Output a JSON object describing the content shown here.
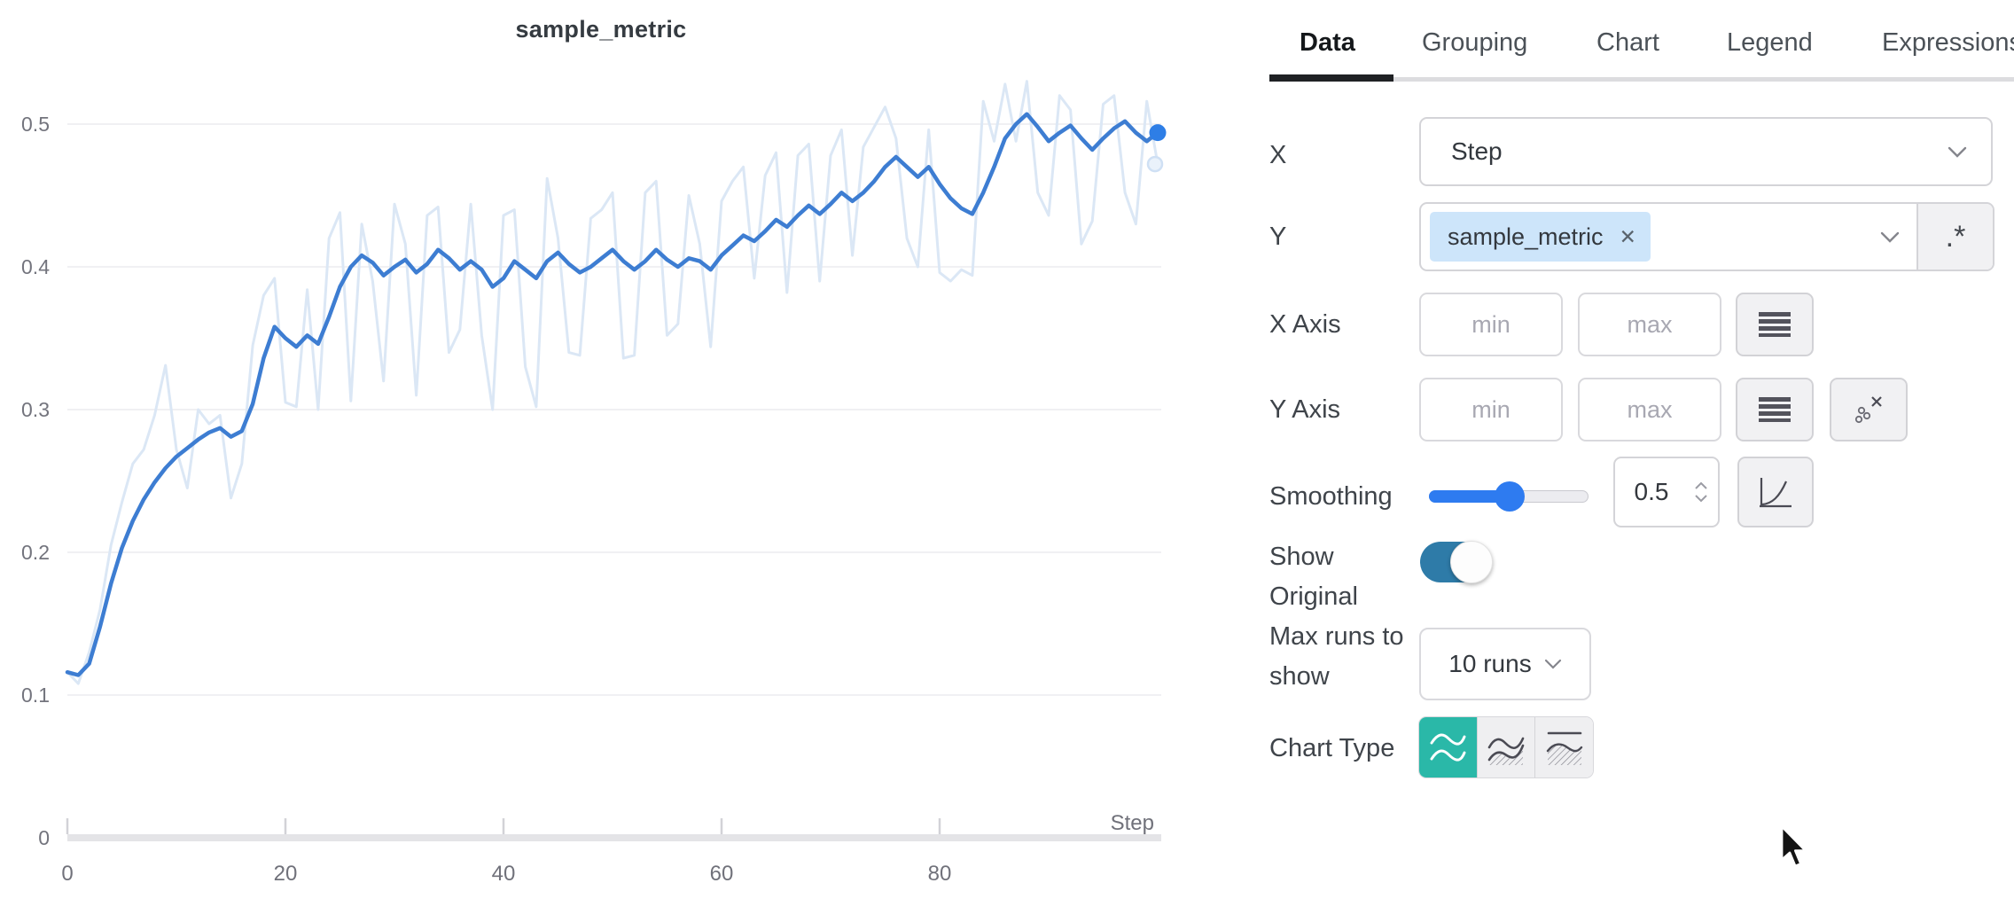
{
  "chart": {
    "title": "sample_metric",
    "x_axis_label": "Step",
    "y_tick_labels": [
      "0",
      "0.1",
      "0.2",
      "0.3",
      "0.4",
      "0.5"
    ],
    "x_tick_labels": [
      "0",
      "20",
      "40",
      "60",
      "80"
    ]
  },
  "chart_data": {
    "type": "line",
    "title": "sample_metric",
    "xlabel": "Step",
    "ylabel": "",
    "xlim": [
      0,
      100
    ],
    "ylim": [
      0,
      0.52
    ],
    "x_ticks": [
      0,
      20,
      40,
      60,
      80
    ],
    "y_ticks": [
      0,
      0.1,
      0.2,
      0.3,
      0.4,
      0.5
    ],
    "grid": true,
    "legend": "none",
    "x": [
      0,
      1,
      2,
      3,
      4,
      5,
      6,
      7,
      8,
      9,
      10,
      11,
      12,
      13,
      14,
      15,
      16,
      17,
      18,
      19,
      20,
      21,
      22,
      23,
      24,
      25,
      26,
      27,
      28,
      29,
      30,
      31,
      32,
      33,
      34,
      35,
      36,
      37,
      38,
      39,
      40,
      41,
      42,
      43,
      44,
      45,
      46,
      47,
      48,
      49,
      50,
      51,
      52,
      53,
      54,
      55,
      56,
      57,
      58,
      59,
      60,
      61,
      62,
      63,
      64,
      65,
      66,
      67,
      68,
      69,
      70,
      71,
      72,
      73,
      74,
      75,
      76,
      77,
      78,
      79,
      80,
      81,
      82,
      83,
      84,
      85,
      86,
      87,
      88,
      89,
      90,
      91,
      92,
      93,
      94,
      95,
      96,
      97,
      98,
      99,
      100
    ],
    "series": [
      {
        "name": "sample_metric (smoothed, 0.5)",
        "color": "#3d7dd2",
        "values": [
          0.116,
          0.114,
          0.122,
          0.148,
          0.178,
          0.203,
          0.222,
          0.237,
          0.249,
          0.259,
          0.267,
          0.273,
          0.279,
          0.284,
          0.287,
          0.281,
          0.285,
          0.304,
          0.336,
          0.358,
          0.35,
          0.344,
          0.352,
          0.346,
          0.365,
          0.386,
          0.4,
          0.408,
          0.403,
          0.394,
          0.4,
          0.405,
          0.396,
          0.402,
          0.412,
          0.406,
          0.398,
          0.404,
          0.398,
          0.386,
          0.392,
          0.404,
          0.398,
          0.392,
          0.404,
          0.41,
          0.402,
          0.396,
          0.4,
          0.406,
          0.412,
          0.404,
          0.398,
          0.404,
          0.412,
          0.405,
          0.4,
          0.406,
          0.404,
          0.398,
          0.408,
          0.415,
          0.422,
          0.418,
          0.425,
          0.433,
          0.428,
          0.436,
          0.443,
          0.437,
          0.444,
          0.452,
          0.446,
          0.452,
          0.46,
          0.47,
          0.477,
          0.47,
          0.463,
          0.47,
          0.458,
          0.448,
          0.441,
          0.437,
          0.452,
          0.47,
          0.49,
          0.5,
          0.507,
          0.498,
          0.488,
          0.494,
          0.499,
          0.49,
          0.482,
          0.49,
          0.497,
          0.502,
          0.494,
          0.488,
          0.494
        ]
      },
      {
        "name": "sample_metric (original)",
        "color": "#dbe7f5",
        "values": [
          0.116,
          0.108,
          0.13,
          0.16,
          0.205,
          0.235,
          0.262,
          0.272,
          0.296,
          0.331,
          0.272,
          0.245,
          0.3,
          0.29,
          0.296,
          0.238,
          0.262,
          0.345,
          0.38,
          0.392,
          0.305,
          0.302,
          0.384,
          0.3,
          0.42,
          0.438,
          0.306,
          0.43,
          0.39,
          0.32,
          0.444,
          0.416,
          0.31,
          0.436,
          0.442,
          0.34,
          0.356,
          0.444,
          0.352,
          0.3,
          0.436,
          0.44,
          0.33,
          0.302,
          0.462,
          0.42,
          0.34,
          0.338,
          0.434,
          0.44,
          0.452,
          0.336,
          0.338,
          0.452,
          0.46,
          0.352,
          0.36,
          0.45,
          0.416,
          0.344,
          0.446,
          0.46,
          0.47,
          0.392,
          0.464,
          0.48,
          0.382,
          0.478,
          0.486,
          0.39,
          0.478,
          0.496,
          0.408,
          0.484,
          0.498,
          0.512,
          0.49,
          0.42,
          0.4,
          0.496,
          0.396,
          0.39,
          0.398,
          0.394,
          0.516,
          0.488,
          0.528,
          0.488,
          0.53,
          0.452,
          0.436,
          0.52,
          0.51,
          0.416,
          0.432,
          0.514,
          0.52,
          0.452,
          0.43,
          0.516,
          0.472
        ]
      }
    ],
    "end_markers": {
      "smoothed": {
        "x": 100,
        "y": 0.494
      },
      "original": {
        "x": 100,
        "y": 0.472
      }
    }
  },
  "panel": {
    "tabs": [
      {
        "label": "Data",
        "active": true
      },
      {
        "label": "Grouping",
        "active": false
      },
      {
        "label": "Chart",
        "active": false
      },
      {
        "label": "Legend",
        "active": false
      },
      {
        "label": "Expressions",
        "active": false
      }
    ],
    "x_row": {
      "label": "X",
      "value": "Step"
    },
    "y_row": {
      "label": "Y",
      "tag": "sample_metric",
      "remove_glyph": "✕",
      "regex_button": ".*"
    },
    "x_axis_row": {
      "label": "X Axis",
      "min_placeholder": "min",
      "max_placeholder": "max"
    },
    "y_axis_row": {
      "label": "Y Axis",
      "min_placeholder": "min",
      "max_placeholder": "max"
    },
    "smoothing_row": {
      "label": "Smoothing",
      "value": "0.5"
    },
    "show_original_row": {
      "label": "Show Original",
      "enabled": true
    },
    "max_runs_row": {
      "label": "Max runs to show",
      "value": "10 runs"
    },
    "chart_type_row": {
      "label": "Chart Type",
      "selected": "line"
    }
  },
  "colors": {
    "accent_teal": "#2ab8a8",
    "toggle_on": "#2e7ba8",
    "slider_blue": "#2e7bf0",
    "line_smoothed": "#3d7dd2",
    "line_original": "#dbe7f5",
    "end_dot": "#2e7ee6",
    "tag_bg": "#cde5fa",
    "gridline": "#ececef"
  },
  "icons": {
    "x_select": "chevron-down-icon",
    "y_select": "chevron-down-icon",
    "regex_toggle": "dot-star-regex-icon",
    "x_axis_scale": "stacked-bars-icon",
    "y_axis_scale": "stacked-bars-icon",
    "y_axis_outliers": "scatter-exclude-icon",
    "smoothing_type": "curve-axis-icon",
    "max_runs": "chevron-down-icon",
    "chart_types": [
      "line-icon",
      "line-area-icon",
      "area-icon"
    ],
    "cursor": "arrow-pointer-icon"
  }
}
